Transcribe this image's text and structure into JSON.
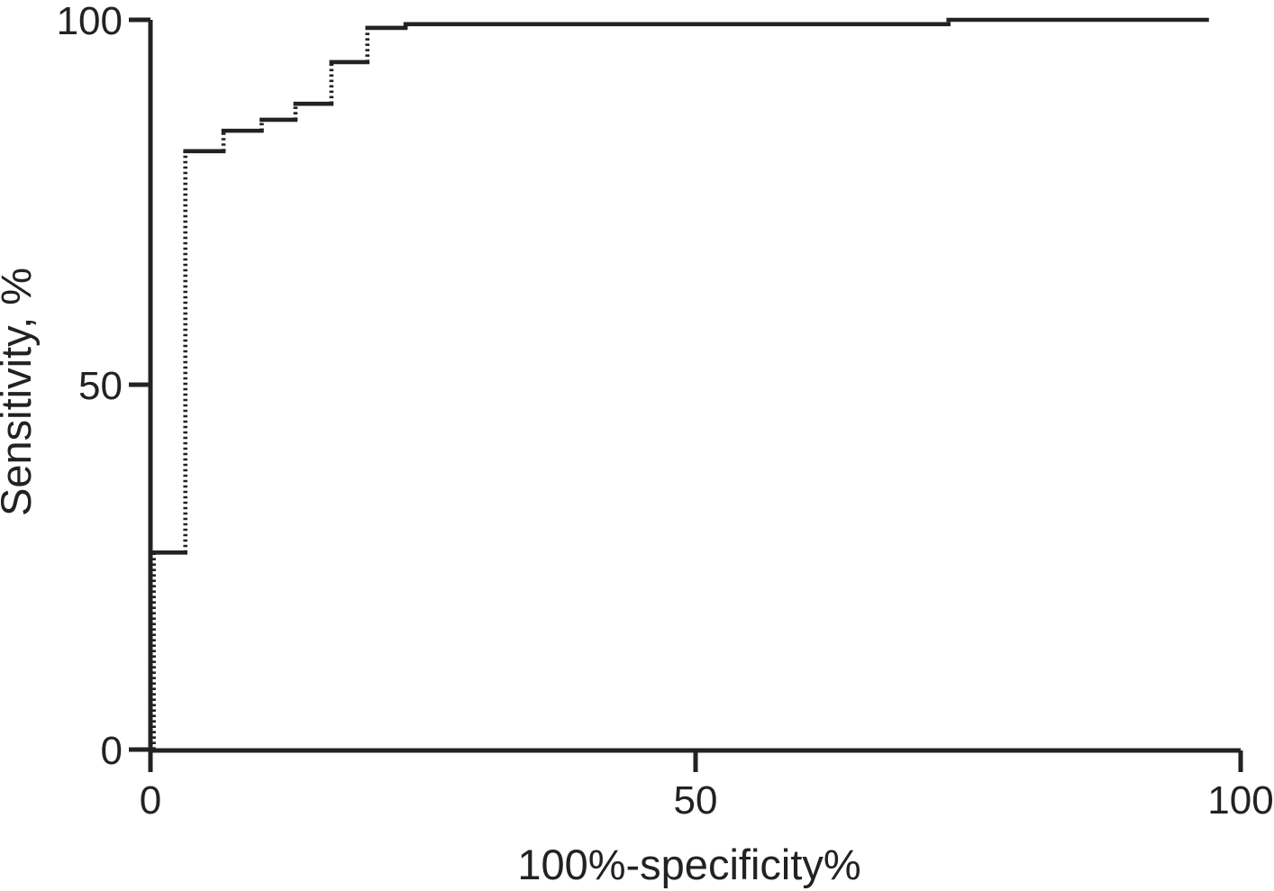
{
  "chart_data": {
    "type": "line",
    "subtype": "roc-step-curve",
    "title": "",
    "xlabel": "100%-specificity%",
    "ylabel": "Sensitivity, %",
    "xlim": [
      0,
      100
    ],
    "ylim": [
      0,
      100
    ],
    "xticks": [
      "0",
      "50",
      "100"
    ],
    "yticks": [
      "0",
      "50",
      "100"
    ],
    "xtick_values": [
      0,
      50,
      100
    ],
    "ytick_values": [
      0,
      50,
      100
    ],
    "grid": false,
    "legend": false,
    "ink": "#242122",
    "background": "#ffffff",
    "series": [
      {
        "name": "roc-curve",
        "points": [
          [
            0.3,
            0
          ],
          [
            0.3,
            27
          ],
          [
            3.2,
            27
          ],
          [
            3.2,
            82
          ],
          [
            6.7,
            82
          ],
          [
            6.7,
            84.8
          ],
          [
            10.2,
            84.8
          ],
          [
            10.2,
            86.3
          ],
          [
            13.3,
            86.3
          ],
          [
            13.3,
            88.5
          ],
          [
            16.6,
            88.5
          ],
          [
            16.6,
            94.2
          ],
          [
            19.9,
            94.2
          ],
          [
            19.9,
            98.9
          ],
          [
            23.4,
            98.9
          ],
          [
            23.4,
            99.4
          ],
          [
            73.2,
            99.4
          ],
          [
            73.2,
            100
          ],
          [
            96.9,
            100
          ]
        ]
      }
    ]
  }
}
